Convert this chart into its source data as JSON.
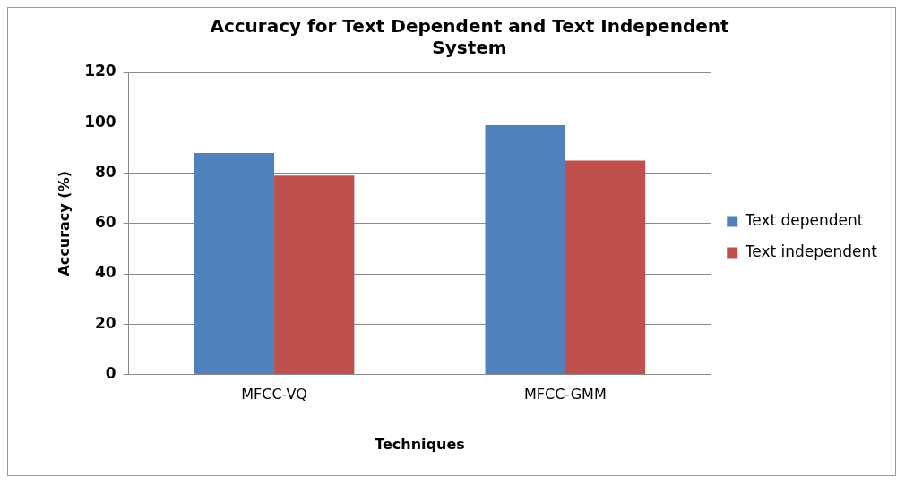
{
  "chart_data": {
    "type": "bar",
    "title": "Accuracy for Text Dependent and Text Independent System",
    "xlabel": "Techniques",
    "ylabel": "Accuracy (%)",
    "categories": [
      "MFCC-VQ",
      "MFCC-GMM"
    ],
    "series": [
      {
        "name": "Text dependent",
        "color": "#4f81bd",
        "values": [
          88,
          99
        ]
      },
      {
        "name": "Text independent",
        "color": "#c0504d",
        "values": [
          79,
          85
        ]
      }
    ],
    "ylim": [
      0,
      120
    ],
    "yticks": [
      0,
      20,
      40,
      60,
      80,
      100,
      120
    ],
    "grid": "y",
    "legend": "right"
  }
}
